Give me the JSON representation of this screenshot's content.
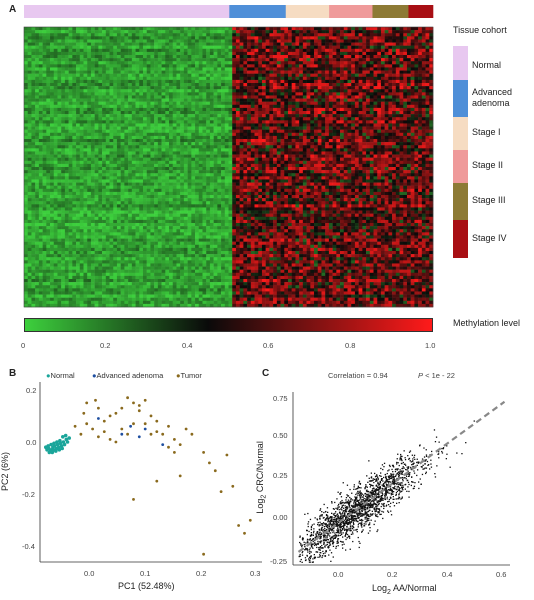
{
  "panel_a": {
    "letter": "A",
    "cohort_title": "Tissue cohort",
    "cohorts": [
      {
        "label": "Normal",
        "color": "#e8c8f0",
        "fraction": 0.502
      },
      {
        "label": "Advanced adenoma",
        "color": "#4f8fd8",
        "fraction": 0.138
      },
      {
        "label": "Stage I",
        "color": "#f6dcc2",
        "fraction": 0.106
      },
      {
        "label": "Stage II",
        "color": "#ef9a9a",
        "fraction": 0.106
      },
      {
        "label": "Stage III",
        "color": "#8d7a35",
        "fraction": 0.088
      },
      {
        "label": "Stage IV",
        "color": "#a80f14",
        "fraction": 0.06
      }
    ],
    "colorbar": {
      "title": "Methylation level",
      "ticks": [
        "0",
        "0.2",
        "0.4",
        "0.6",
        "0.8",
        "1.0"
      ],
      "stops": [
        "#3dd03d",
        "#0a0a0a",
        "#ff1a1a"
      ]
    }
  },
  "panel_b": {
    "letter": "B",
    "legend": [
      {
        "label": "Normal",
        "color": "#1aa59a"
      },
      {
        "label": "Advanced adenoma",
        "color": "#1f4fa0"
      },
      {
        "label": "Tumor",
        "color": "#8a6a1e"
      }
    ],
    "xlabel": "PC1 (52.48%)",
    "ylabel": "PC2 (6%)",
    "xticks": [
      "0.0",
      "0.1",
      "0.2",
      "0.3"
    ],
    "yticks": [
      "0.2",
      "0.0",
      "-0.2",
      "-0.4"
    ]
  },
  "panel_c": {
    "letter": "C",
    "correlation": "Correlation = 0.94",
    "p_italic": "P",
    "p_rest": " < 1e - 22",
    "xlabel_pre": "Log",
    "xlabel_sub": "2",
    "xlabel_post": " AA/Normal",
    "ylabel_pre": "Log",
    "ylabel_sub": "2",
    "ylabel_post": " CRC/Normal",
    "xticks": [
      "0.0",
      "0.2",
      "0.4",
      "0.6"
    ],
    "yticks": [
      "0.75",
      "0.50",
      "0.25",
      "0.00",
      "-0.25"
    ]
  },
  "chart_data": [
    {
      "type": "heatmap",
      "title": "",
      "column_groups": [
        "Normal",
        "Advanced adenoma",
        "Stage I",
        "Stage II",
        "Stage III",
        "Stage IV"
      ],
      "value_range": [
        0,
        1.0
      ],
      "colorbar_label": "Methylation level"
    },
    {
      "type": "scatter",
      "xlabel": "PC1 (52.48%)",
      "ylabel": "PC2 (6%)",
      "xlim": [
        -0.08,
        0.3
      ],
      "ylim": [
        -0.47,
        0.22
      ],
      "series": [
        {
          "name": "Normal",
          "points": [
            [
              -0.07,
              -0.03
            ],
            [
              -0.065,
              -0.035
            ],
            [
              -0.06,
              -0.04
            ],
            [
              -0.058,
              -0.03
            ],
            [
              -0.055,
              -0.025
            ],
            [
              -0.052,
              -0.035
            ],
            [
              -0.05,
              -0.02
            ],
            [
              -0.048,
              -0.03
            ],
            [
              -0.045,
              -0.015
            ],
            [
              -0.043,
              -0.025
            ],
            [
              -0.04,
              -0.01
            ],
            [
              -0.038,
              -0.02
            ],
            [
              -0.035,
              0.0
            ],
            [
              -0.033,
              -0.01
            ],
            [
              -0.03,
              0.005
            ],
            [
              -0.062,
              -0.045
            ],
            [
              -0.057,
              -0.04
            ],
            [
              -0.053,
              -0.045
            ],
            [
              -0.047,
              -0.04
            ],
            [
              -0.042,
              -0.035
            ],
            [
              -0.066,
              -0.025
            ],
            [
              -0.061,
              -0.02
            ],
            [
              -0.056,
              -0.015
            ],
            [
              -0.051,
              -0.01
            ],
            [
              -0.046,
              -0.005
            ],
            [
              -0.041,
              0.01
            ],
            [
              -0.036,
              0.015
            ],
            [
              -0.068,
              -0.04
            ],
            [
              -0.064,
              -0.05
            ],
            [
              -0.059,
              -0.05
            ]
          ]
        },
        {
          "name": "Advanced adenoma",
          "points": [
            [
              0.06,
              0.02
            ],
            [
              0.09,
              0.01
            ],
            [
              0.1,
              0.04
            ],
            [
              0.13,
              -0.02
            ],
            [
              0.075,
              0.05
            ],
            [
              0.02,
              0.08
            ]
          ]
        },
        {
          "name": "Tumor",
          "points": [
            [
              0.0,
              0.14
            ],
            [
              0.02,
              0.12
            ],
            [
              0.03,
              0.07
            ],
            [
              0.05,
              0.1
            ],
            [
              0.06,
              0.12
            ],
            [
              0.07,
              0.16
            ],
            [
              0.08,
              0.14
            ],
            [
              0.09,
              0.11
            ],
            [
              0.1,
              0.06
            ],
            [
              0.11,
              0.09
            ],
            [
              0.12,
              0.03
            ],
            [
              0.13,
              0.02
            ],
            [
              0.14,
              0.05
            ],
            [
              0.15,
              0.0
            ],
            [
              0.16,
              -0.02
            ],
            [
              0.17,
              0.04
            ],
            [
              -0.02,
              0.05
            ],
            [
              -0.01,
              0.02
            ],
            [
              0.0,
              0.06
            ],
            [
              0.01,
              0.04
            ],
            [
              0.02,
              0.01
            ],
            [
              0.03,
              0.03
            ],
            [
              0.04,
              0.0
            ],
            [
              0.05,
              -0.01
            ],
            [
              0.06,
              0.04
            ],
            [
              0.07,
              0.02
            ],
            [
              0.08,
              0.06
            ],
            [
              0.09,
              0.13
            ],
            [
              0.1,
              0.15
            ],
            [
              0.11,
              0.02
            ],
            [
              0.12,
              0.07
            ],
            [
              0.14,
              -0.03
            ],
            [
              0.15,
              -0.05
            ],
            [
              0.18,
              0.02
            ],
            [
              0.2,
              -0.05
            ],
            [
              0.21,
              -0.09
            ],
            [
              0.22,
              -0.12
            ],
            [
              0.23,
              -0.2
            ],
            [
              0.24,
              -0.06
            ],
            [
              0.25,
              -0.18
            ],
            [
              0.26,
              -0.33
            ],
            [
              0.27,
              -0.36
            ],
            [
              0.28,
              -0.31
            ],
            [
              0.2,
              -0.44
            ],
            [
              0.08,
              -0.23
            ],
            [
              0.12,
              -0.16
            ],
            [
              0.16,
              -0.14
            ],
            [
              0.04,
              0.09
            ],
            [
              -0.005,
              0.1
            ],
            [
              0.015,
              0.15
            ]
          ]
        }
      ]
    },
    {
      "type": "scatter",
      "xlabel": "Log2 AA/Normal",
      "ylabel": "Log2 CRC/Normal",
      "xlim": [
        -0.17,
        0.62
      ],
      "ylim": [
        -0.28,
        0.78
      ],
      "correlation": 0.94,
      "p_value": "< 1e - 22",
      "trend_line": [
        [
          -0.15,
          -0.2
        ],
        [
          0.6,
          0.72
        ]
      ],
      "n_points_approx": 2000
    }
  ]
}
